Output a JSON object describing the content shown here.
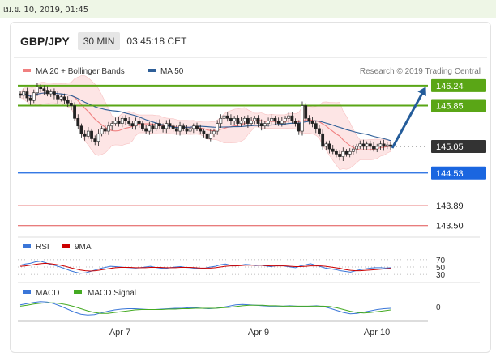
{
  "date_stamp": "เม.ย. 10, 2019, 01:45",
  "header": {
    "symbol": "GBP/JPY",
    "timeframe": "30 MIN",
    "time": "03:45:18 CET"
  },
  "colors": {
    "ma20": "#f08080",
    "ma50": "#2e5f98",
    "resistance": "#5aa616",
    "support": "#1a66e0",
    "support_red": "#e05050",
    "candle": "#222222",
    "band_fill": "#fde5e5",
    "arrow": "#245c9a",
    "rsi": "#3a76d8",
    "rsi_ma": "#cc0000",
    "macd": "#3a76d8",
    "macd_signal": "#44aa22"
  },
  "chart_data": [
    {
      "type": "candlestick",
      "legend": [
        {
          "label": "MA 20 + Bollinger Bands",
          "color": "#f08080"
        },
        {
          "label": "MA 50",
          "color": "#2e5f98"
        }
      ],
      "source": "Research © 2019 Trading Central",
      "x_ticks": [
        "Apr 7",
        "Apr 9",
        "Apr 10"
      ],
      "levels": [
        {
          "value": 146.24,
          "label": "146.24",
          "kind": "resistance"
        },
        {
          "value": 145.85,
          "label": "145.85",
          "kind": "resistance"
        },
        {
          "value": 145.05,
          "label": "145.05",
          "kind": "last"
        },
        {
          "value": 144.53,
          "label": "144.53",
          "kind": "support"
        },
        {
          "value": 143.89,
          "label": "143.89",
          "kind": "support_red"
        },
        {
          "value": 143.5,
          "label": "143.50",
          "kind": "support_red"
        }
      ],
      "ylim": [
        143.4,
        146.35
      ],
      "close": [
        146.05,
        146.12,
        146.0,
        145.95,
        146.1,
        146.22,
        146.18,
        146.15,
        146.08,
        146.12,
        146.05,
        145.98,
        146.02,
        145.95,
        145.9,
        145.85,
        145.6,
        145.45,
        145.3,
        145.25,
        145.35,
        145.2,
        145.15,
        145.3,
        145.4,
        145.35,
        145.45,
        145.5,
        145.55,
        145.5,
        145.6,
        145.55,
        145.5,
        145.45,
        145.55,
        145.5,
        145.4,
        145.35,
        145.45,
        145.4,
        145.5,
        145.45,
        145.4,
        145.5,
        145.45,
        145.4,
        145.35,
        145.45,
        145.4,
        145.35,
        145.4,
        145.45,
        145.4,
        145.35,
        145.3,
        145.2,
        145.3,
        145.35,
        145.5,
        145.6,
        145.65,
        145.6,
        145.55,
        145.6,
        145.5,
        145.55,
        145.6,
        145.5,
        145.55,
        145.6,
        145.5,
        145.45,
        145.5,
        145.55,
        145.6,
        145.55,
        145.5,
        145.55,
        145.6,
        145.65,
        145.55,
        145.5,
        145.35,
        145.85,
        145.6,
        145.55,
        145.5,
        145.4,
        145.3,
        145.05,
        145.1,
        145.0,
        144.95,
        144.9,
        144.85,
        144.95,
        144.9,
        144.95,
        145.0,
        145.05,
        145.1,
        145.05,
        145.1,
        145.05,
        145.0,
        145.05,
        145.1,
        145.05,
        145.08,
        145.05
      ],
      "forecast": {
        "from": 145.05,
        "to": 146.24
      }
    },
    {
      "type": "line",
      "legend": [
        {
          "label": "RSI",
          "color": "#3a76d8"
        },
        {
          "label": "9MA",
          "color": "#cc0000"
        }
      ],
      "y_ticks": [
        "70",
        "50",
        "30"
      ],
      "levels": [
        70,
        50,
        30
      ],
      "ylim": [
        15,
        85
      ],
      "rsi": [
        55,
        58,
        60,
        64,
        66,
        62,
        57,
        54,
        50,
        45,
        40,
        36,
        33,
        34,
        38,
        42,
        46,
        49,
        52,
        51,
        50,
        49,
        48,
        47,
        48,
        50,
        52,
        49,
        47,
        46,
        48,
        50,
        51,
        49,
        48,
        46,
        45,
        47,
        50,
        52,
        56,
        58,
        55,
        53,
        55,
        57,
        56,
        54,
        55,
        53,
        51,
        53,
        55,
        52,
        50,
        48,
        53,
        56,
        59,
        55,
        51,
        47,
        45,
        43,
        40,
        38,
        36,
        40,
        43,
        45,
        47,
        48,
        48,
        47,
        48
      ],
      "rsi_ma": [
        52,
        53,
        55,
        57,
        59,
        60,
        59,
        57,
        55,
        52,
        48,
        45,
        42,
        40,
        39,
        40,
        42,
        44,
        46,
        48,
        49,
        49,
        49,
        48,
        48,
        48,
        49,
        49,
        49,
        48,
        48,
        48,
        49,
        49,
        49,
        48,
        47,
        47,
        47,
        48,
        50,
        52,
        53,
        53,
        54,
        55,
        55,
        55,
        55,
        54,
        53,
        53,
        53,
        53,
        52,
        51,
        51,
        52,
        53,
        53,
        53,
        52,
        50,
        48,
        46,
        43,
        41,
        40,
        40,
        41,
        42,
        43,
        44,
        45,
        46
      ]
    },
    {
      "type": "line",
      "legend": [
        {
          "label": "MACD",
          "color": "#3a76d8"
        },
        {
          "label": "MACD Signal",
          "color": "#44aa22"
        }
      ],
      "y_ticks": [
        "0"
      ],
      "ylim": [
        -0.32,
        0.22
      ],
      "macd": [
        0.05,
        0.08,
        0.11,
        0.13,
        0.12,
        0.08,
        0.02,
        -0.05,
        -0.12,
        -0.17,
        -0.19,
        -0.18,
        -0.14,
        -0.1,
        -0.07,
        -0.05,
        -0.04,
        -0.04,
        -0.05,
        -0.06,
        -0.06,
        -0.05,
        -0.04,
        -0.03,
        -0.03,
        -0.02,
        -0.02,
        -0.03,
        -0.04,
        -0.03,
        -0.01,
        0.02,
        0.05,
        0.06,
        0.05,
        0.04,
        0.03,
        0.02,
        0.02,
        0.02,
        0.03,
        0.02,
        0.01,
        0.02,
        0.03,
        0.01,
        -0.03,
        -0.08,
        -0.13,
        -0.16,
        -0.15,
        -0.12,
        -0.09,
        -0.06,
        -0.04,
        -0.03
      ],
      "macd_signal": [
        0.02,
        0.04,
        0.07,
        0.09,
        0.1,
        0.1,
        0.08,
        0.05,
        0.01,
        -0.04,
        -0.09,
        -0.13,
        -0.15,
        -0.15,
        -0.13,
        -0.11,
        -0.09,
        -0.07,
        -0.06,
        -0.06,
        -0.06,
        -0.06,
        -0.05,
        -0.05,
        -0.04,
        -0.04,
        -0.03,
        -0.03,
        -0.03,
        -0.03,
        -0.02,
        -0.01,
        0.01,
        0.03,
        0.04,
        0.04,
        0.04,
        0.03,
        0.03,
        0.02,
        0.02,
        0.02,
        0.02,
        0.02,
        0.02,
        0.02,
        0.01,
        -0.02,
        -0.06,
        -0.1,
        -0.13,
        -0.14,
        -0.13,
        -0.11,
        -0.09,
        -0.07
      ]
    }
  ]
}
